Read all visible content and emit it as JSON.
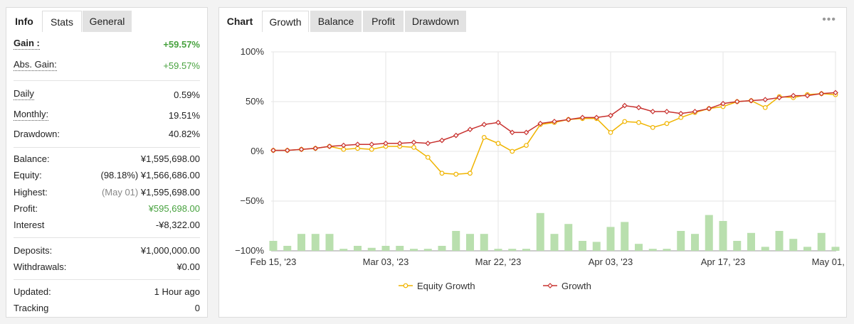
{
  "left_panel": {
    "tabs": [
      {
        "label": "Info"
      },
      {
        "label": "Stats"
      },
      {
        "label": "General"
      }
    ],
    "rows": {
      "gain": {
        "label": "Gain :",
        "value": "+59.57%"
      },
      "abs_gain": {
        "label": "Abs. Gain:",
        "value": "+59.57%"
      },
      "daily": {
        "label": "Daily",
        "value": "0.59%"
      },
      "monthly": {
        "label": "Monthly:",
        "value": "19.51%"
      },
      "drawdown": {
        "label": "Drawdown:",
        "value": "40.82%"
      },
      "balance": {
        "label": "Balance:",
        "value": "¥1,595,698.00"
      },
      "equity": {
        "label": "Equity:",
        "note": "(98.18%)",
        "value": "¥1,566,686.00"
      },
      "highest": {
        "label": "Highest:",
        "note": "(May 01)",
        "value": "¥1,595,698.00"
      },
      "profit": {
        "label": "Profit:",
        "value": "¥595,698.00"
      },
      "interest": {
        "label": "Interest",
        "value": "-¥8,322.00"
      },
      "deposits": {
        "label": "Deposits:",
        "value": "¥1,000,000.00"
      },
      "withdrawals": {
        "label": "Withdrawals:",
        "value": "¥0.00"
      },
      "updated": {
        "label": "Updated:",
        "value": "1 Hour ago"
      },
      "tracking": {
        "label": "Tracking",
        "value": "0"
      }
    },
    "colors": {
      "positive": "#48a23f"
    }
  },
  "right_panel": {
    "tabs": [
      {
        "label": "Chart"
      },
      {
        "label": "Growth"
      },
      {
        "label": "Balance"
      },
      {
        "label": "Profit"
      },
      {
        "label": "Drawdown"
      }
    ],
    "menu_icon": "more-dots-icon",
    "menu_glyph": "•••"
  },
  "chart_data": {
    "type": "line",
    "y_ticks": [
      "100%",
      "50%",
      "0%",
      "−50%",
      "−100%"
    ],
    "ylim": [
      -100,
      100
    ],
    "x_ticks": [
      "Feb 15, '23",
      "Mar 03, '23",
      "Mar 22, '23",
      "Apr 03, '23",
      "Apr 17, '23",
      "May 01, '23"
    ],
    "x_tick_index": [
      0,
      8,
      16,
      24,
      32,
      40
    ],
    "grid": true,
    "legend_position": "bottom",
    "series": [
      {
        "name": "Equity Growth",
        "color": "#f0b400",
        "values": [
          1,
          1,
          2,
          3,
          5,
          2,
          3,
          2,
          5,
          5,
          4,
          -6,
          -22,
          -23,
          -22,
          14,
          8,
          0,
          6,
          27,
          29,
          32,
          33,
          33,
          19,
          30,
          29,
          24,
          28,
          34,
          39,
          43,
          45,
          50,
          51,
          44,
          55,
          54,
          57,
          58,
          57
        ]
      },
      {
        "name": "Growth",
        "color": "#c8322f",
        "values": [
          1,
          1,
          2,
          3,
          5,
          6,
          7,
          7,
          8,
          8,
          9,
          8,
          11,
          16,
          22,
          27,
          29,
          19,
          19,
          28,
          30,
          32,
          34,
          34,
          36,
          46,
          44,
          40,
          40,
          38,
          40,
          43,
          48,
          50,
          51,
          52,
          54,
          56,
          56,
          58,
          59
        ]
      }
    ],
    "bars": {
      "color": "#b9dfae",
      "values": [
        -90,
        -95,
        -83,
        -83,
        -83,
        -98,
        -95,
        -97,
        -95,
        -95,
        -98,
        -98,
        -95,
        -80,
        -83,
        -83,
        -98,
        -98,
        -98,
        -62,
        -83,
        -73,
        -90,
        -91,
        -76,
        -71,
        -93,
        -98,
        -98,
        -80,
        -83,
        -64,
        -70,
        -90,
        -82,
        -96,
        -80,
        -88,
        -96,
        -82,
        -96
      ]
    }
  }
}
